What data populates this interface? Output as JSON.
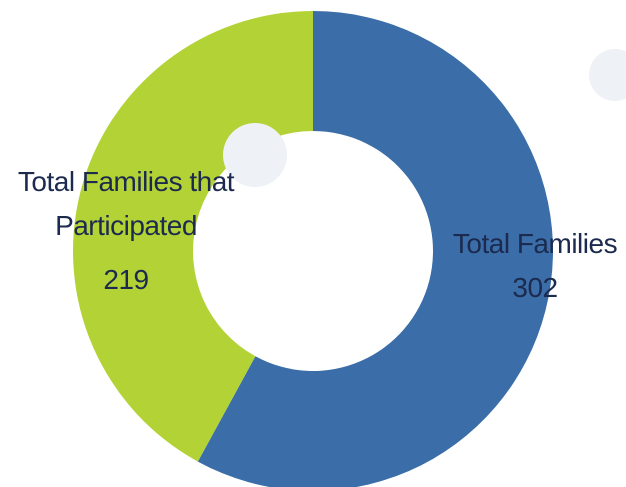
{
  "chart_data": {
    "type": "pie",
    "donut": true,
    "categories": [
      "Total Families",
      "Total Families that Participated"
    ],
    "values": [
      302,
      219
    ],
    "colors": [
      "#3b6ea8",
      "#b3d235"
    ]
  }
}
